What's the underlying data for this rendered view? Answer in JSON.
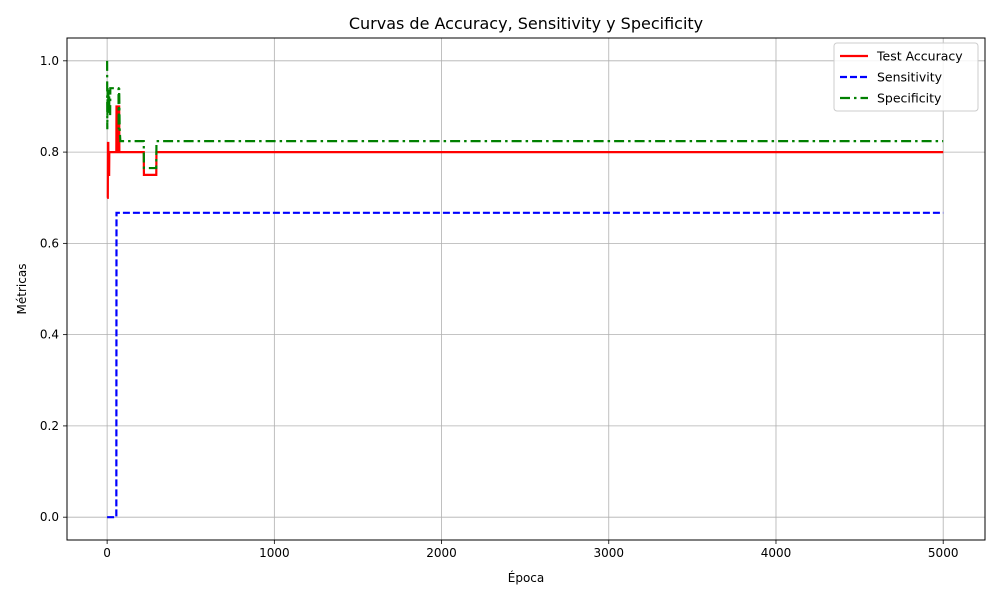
{
  "chart_data": {
    "type": "line",
    "title": "Curvas de Accuracy, Sensitivity y Specificity",
    "xlabel": "Época",
    "ylabel": "Métricas",
    "xlim": [
      -240,
      5250
    ],
    "ylim": [
      -0.05,
      1.05
    ],
    "xticks": [
      0,
      1000,
      2000,
      3000,
      4000,
      5000
    ],
    "xtick_labels": [
      "0",
      "1000",
      "2000",
      "3000",
      "4000",
      "5000"
    ],
    "yticks": [
      0.0,
      0.2,
      0.4,
      0.6,
      0.8,
      1.0
    ],
    "ytick_labels": [
      "0.0",
      "0.2",
      "0.4",
      "0.6",
      "0.8",
      "1.0"
    ],
    "grid": true,
    "legend_position": "top-right",
    "series": [
      {
        "name": "Test Accuracy",
        "color": "#ff0000",
        "dash": "solid",
        "points": [
          [
            0,
            0.7
          ],
          [
            4,
            0.7
          ],
          [
            5,
            0.82
          ],
          [
            7,
            0.82
          ],
          [
            8,
            0.75
          ],
          [
            12,
            0.75
          ],
          [
            13,
            0.8
          ],
          [
            55,
            0.8
          ],
          [
            56,
            0.9
          ],
          [
            63,
            0.9
          ],
          [
            64,
            0.8
          ],
          [
            66,
            0.8
          ],
          [
            67,
            0.9
          ],
          [
            72,
            0.9
          ],
          [
            73,
            0.8
          ],
          [
            219,
            0.8
          ],
          [
            220,
            0.75
          ],
          [
            294,
            0.75
          ],
          [
            295,
            0.8
          ],
          [
            5000,
            0.8
          ]
        ]
      },
      {
        "name": "Sensitivity",
        "color": "#0000ff",
        "dash": "dashed",
        "points": [
          [
            0,
            0.0
          ],
          [
            55,
            0.0
          ],
          [
            56,
            0.667
          ],
          [
            5000,
            0.667
          ]
        ]
      },
      {
        "name": "Specificity",
        "color": "#008000",
        "dash": "dashdot",
        "points": [
          [
            0,
            1.0
          ],
          [
            1,
            0.85
          ],
          [
            3,
            0.94
          ],
          [
            6,
            0.89
          ],
          [
            8,
            0.94
          ],
          [
            12,
            0.94
          ],
          [
            13,
            0.88
          ],
          [
            18,
            0.88
          ],
          [
            19,
            0.94
          ],
          [
            68,
            0.94
          ],
          [
            69,
            0.85
          ],
          [
            72,
            0.94
          ],
          [
            75,
            0.85
          ],
          [
            79,
            0.824
          ],
          [
            219,
            0.824
          ],
          [
            220,
            0.765
          ],
          [
            294,
            0.765
          ],
          [
            295,
            0.824
          ],
          [
            5000,
            0.824
          ]
        ]
      }
    ]
  }
}
